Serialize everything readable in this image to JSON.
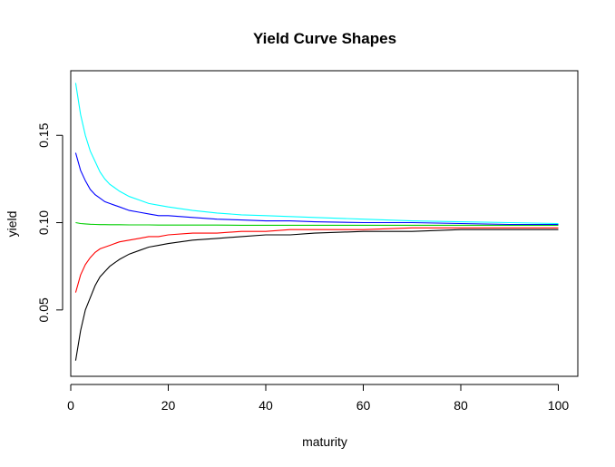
{
  "chart_data": {
    "type": "line",
    "title": "Yield Curve Shapes",
    "xlabel": "maturity",
    "ylabel": "yield",
    "xlim": [
      0,
      104
    ],
    "ylim": [
      0.012,
      0.187
    ],
    "xticks": [
      {
        "value": 20,
        "label": "20"
      },
      {
        "value": 40,
        "label": "40"
      },
      {
        "value": 60,
        "label": "60"
      },
      {
        "value": 80,
        "label": "80"
      },
      {
        "value": 100,
        "label": "100"
      }
    ],
    "xtick_extra": {
      "value": 0,
      "label": "0"
    },
    "yticks": [
      {
        "value": 0.05,
        "label": "0.05"
      },
      {
        "value": 0.1,
        "label": "0.10"
      },
      {
        "value": 0.15,
        "label": "0.15"
      }
    ],
    "x": [
      1,
      2,
      3,
      4,
      5,
      6,
      7,
      8,
      9,
      10,
      12,
      14,
      16,
      18,
      20,
      25,
      30,
      35,
      40,
      45,
      50,
      60,
      70,
      80,
      90,
      100
    ],
    "series": [
      {
        "color": "#000000",
        "values": [
          0.021,
          0.038,
          0.05,
          0.057,
          0.064,
          0.069,
          0.072,
          0.075,
          0.077,
          0.079,
          0.082,
          0.084,
          0.086,
          0.087,
          0.088,
          0.09,
          0.091,
          0.092,
          0.093,
          0.093,
          0.094,
          0.095,
          0.095,
          0.096,
          0.096,
          0.096
        ]
      },
      {
        "color": "#ff0000",
        "values": [
          0.06,
          0.07,
          0.076,
          0.08,
          0.083,
          0.085,
          0.086,
          0.087,
          0.088,
          0.089,
          0.09,
          0.091,
          0.092,
          0.092,
          0.093,
          0.094,
          0.094,
          0.095,
          0.095,
          0.096,
          0.096,
          0.096,
          0.097,
          0.097,
          0.097,
          0.097
        ]
      },
      {
        "color": "#00cd00",
        "values": [
          0.1,
          0.0995,
          0.0993,
          0.0991,
          0.099,
          0.0989,
          0.0989,
          0.0988,
          0.0988,
          0.0988,
          0.0987,
          0.0987,
          0.0987,
          0.0986,
          0.0986,
          0.0986,
          0.0986,
          0.0985,
          0.0985,
          0.0985,
          0.0985,
          0.0985,
          0.0985,
          0.0985,
          0.0985,
          0.0985
        ]
      },
      {
        "color": "#0000ff",
        "values": [
          0.14,
          0.13,
          0.124,
          0.119,
          0.116,
          0.114,
          0.112,
          0.111,
          0.11,
          0.109,
          0.107,
          0.106,
          0.105,
          0.104,
          0.104,
          0.103,
          0.102,
          0.1015,
          0.101,
          0.101,
          0.1005,
          0.1,
          0.1,
          0.0995,
          0.099,
          0.099
        ]
      },
      {
        "color": "#00ffff",
        "values": [
          0.18,
          0.162,
          0.15,
          0.141,
          0.135,
          0.129,
          0.125,
          0.122,
          0.12,
          0.118,
          0.115,
          0.113,
          0.111,
          0.11,
          0.109,
          0.107,
          0.1055,
          0.1045,
          0.104,
          0.1035,
          0.103,
          0.102,
          0.101,
          0.1005,
          0.1,
          0.0995
        ]
      }
    ],
    "grid": false,
    "legend": "none"
  }
}
